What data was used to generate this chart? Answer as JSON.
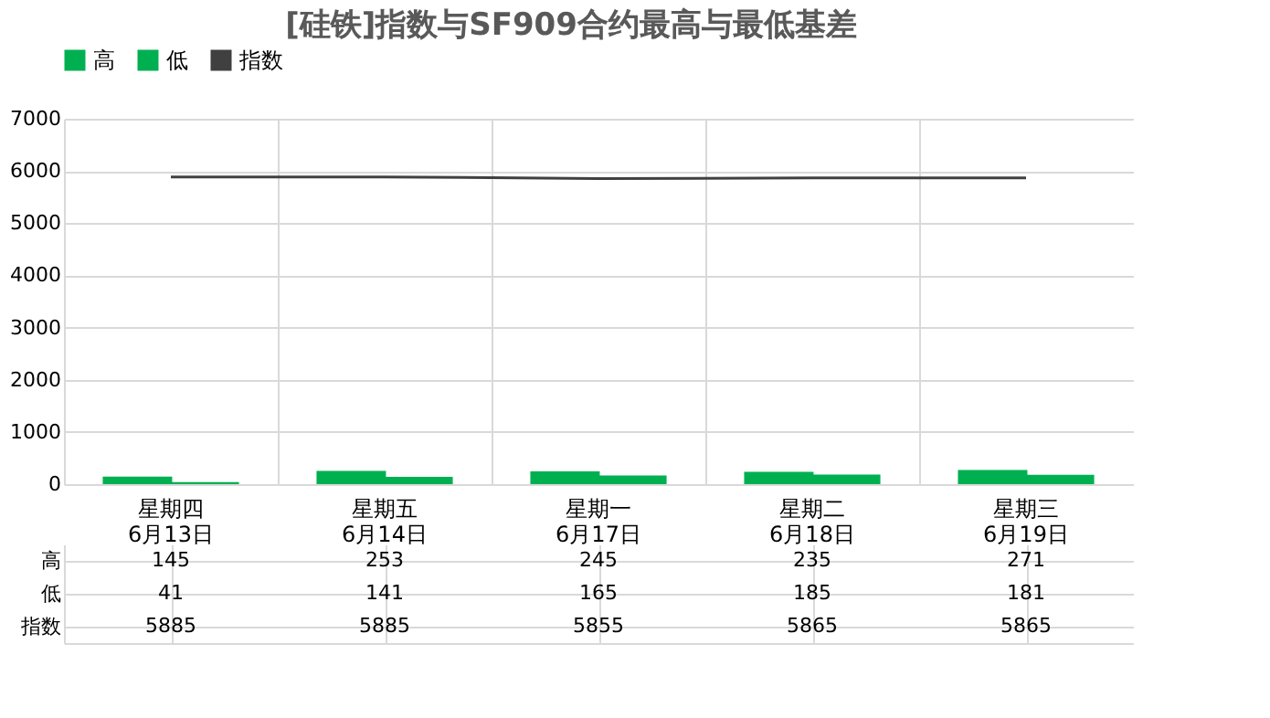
{
  "chart_data": {
    "type": "bar",
    "title": "[硅铁]指数与SF909合约最高与最低基差",
    "categories": [
      "星期四\n6月13日",
      "星期五\n6月14日",
      "星期一\n6月17日",
      "星期二\n6月18日",
      "星期三\n6月19日"
    ],
    "series": [
      {
        "name": "高",
        "color": "#00b050",
        "values": [
          145,
          253,
          245,
          235,
          271
        ]
      },
      {
        "name": "低",
        "color": "#00b050",
        "values": [
          41,
          141,
          165,
          185,
          181
        ]
      },
      {
        "name": "指数",
        "type": "line",
        "color": "#404040",
        "values": [
          5885,
          5885,
          5855,
          5865,
          5865
        ]
      }
    ],
    "ylim": [
      0,
      7000
    ],
    "yticks": [
      0,
      1000,
      2000,
      3000,
      4000,
      5000,
      6000,
      7000
    ],
    "grid": "y",
    "legend": "top",
    "data_labels": true
  }
}
